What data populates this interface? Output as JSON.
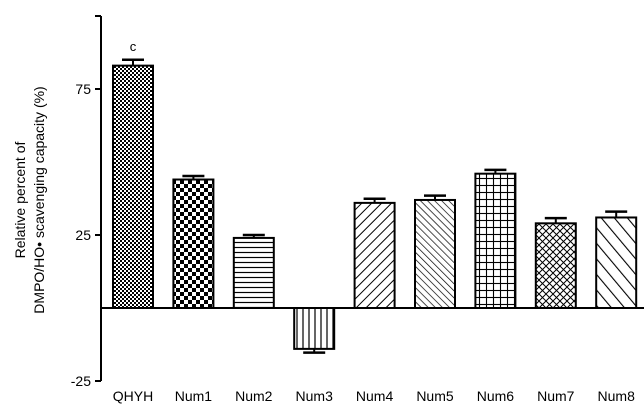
{
  "chart_data": {
    "type": "bar",
    "ylabel_line1": "Relative percent of",
    "ylabel_line2": "DMPO/HO• scavenging capacity (%)",
    "categories": [
      "QHYH",
      "Num1",
      "Num2",
      "Num3",
      "Num4",
      "Num5",
      "Num6",
      "Num7",
      "Num8"
    ],
    "values": [
      83,
      44,
      24,
      -14,
      36,
      37,
      46,
      29,
      31
    ],
    "errors": [
      2.0,
      1.2,
      1.0,
      1.3,
      1.4,
      1.5,
      1.3,
      1.8,
      2.0
    ],
    "patterns": [
      "checker-fine",
      "checker-coarse",
      "horizontal",
      "vertical",
      "diagonal-right",
      "diagonal-right-dense",
      "grid",
      "crosshatch",
      "diagonal-left"
    ],
    "annotations": [
      {
        "category": "QHYH",
        "text": "c"
      }
    ],
    "ylim": [
      -25,
      100
    ],
    "yticks": [
      -25,
      25,
      75
    ],
    "colors": {
      "bar_fill": "#ffffff",
      "pattern": "#000000",
      "axis": "#000000"
    }
  }
}
